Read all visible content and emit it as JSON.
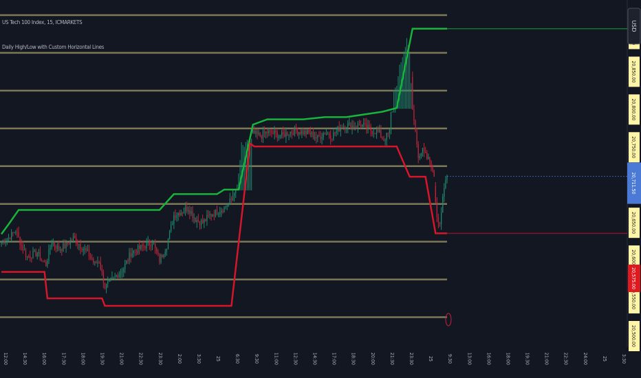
{
  "legend": {
    "symbol": "US Tech 100 Index, 15, ICMARKETS",
    "indicator": "Daily High/Low with Custom Horizontal Lines"
  },
  "price_scale": {
    "currency": "USD",
    "level_labels": [
      "20,900.00",
      "20,850.00",
      "20,800.00",
      "20,750.00",
      "20,700.00",
      "20,650.00",
      "20,600.00",
      "20,550.00",
      "20,500.00"
    ],
    "current_price": "20,711.50",
    "day_low_label": "20,575.00"
  },
  "time_axis": {
    "labels": [
      "12:00",
      "14:30",
      "16:00",
      "17:30",
      "18:00",
      "19:30",
      "21:00",
      "22:30",
      "23:30",
      "2:00",
      "3:30",
      "25",
      "6:30",
      "9:30",
      "11:00",
      "12:30",
      "14:30",
      "17:00",
      "18:30",
      "20:00",
      "21:30",
      "23:30",
      "25",
      "9:30",
      "13:00",
      "16:00",
      "18:00",
      "19:30",
      "21:00",
      "22:30",
      "24:00",
      "25",
      "3:30"
    ]
  },
  "colors": {
    "background": "#131722",
    "level_line": "#8f8a62",
    "day_high": "#18b43b",
    "day_low": "#d5162b",
    "candle_up": "#1d8a6e",
    "candle_down": "#c2253a",
    "current_price_line": "#3d5ea6",
    "current_price_label": "#4a7ad6",
    "low_label": "#e0191e",
    "level_label_bg": "#fff5a8"
  },
  "chart_data": {
    "type": "candlestick",
    "symbol": "US Tech 100 Index",
    "timeframe": "15",
    "ylim": [
      20490,
      20945
    ],
    "horizontal_levels": [
      20925,
      20875,
      20825,
      20775,
      20725,
      20675,
      20625,
      20575,
      20525
    ],
    "current_price": 20711.5,
    "day_high_steps": [
      [
        0,
        20635
      ],
      [
        5,
        20648
      ],
      [
        12,
        20667
      ],
      [
        110,
        20667
      ],
      [
        120,
        20688
      ],
      [
        150,
        20688
      ],
      [
        155,
        20694
      ],
      [
        165,
        20694
      ],
      [
        175,
        20780
      ],
      [
        185,
        20787
      ],
      [
        210,
        20787
      ],
      [
        225,
        20790
      ],
      [
        240,
        20790
      ],
      [
        265,
        20797
      ],
      [
        275,
        20802
      ],
      [
        286,
        20907
      ],
      [
        310,
        20907
      ]
    ],
    "day_low_steps": [
      [
        0,
        20585
      ],
      [
        30,
        20585
      ],
      [
        32,
        20550
      ],
      [
        70,
        20550
      ],
      [
        72,
        20540
      ],
      [
        160,
        20540
      ],
      [
        173,
        20755
      ],
      [
        176,
        20751
      ],
      [
        275,
        20751
      ],
      [
        284,
        20711
      ],
      [
        295,
        20711
      ],
      [
        302,
        20636
      ],
      [
        310,
        20636
      ]
    ],
    "close_anchors": [
      [
        0,
        20625
      ],
      [
        5,
        20630
      ],
      [
        10,
        20640
      ],
      [
        14,
        20620
      ],
      [
        18,
        20605
      ],
      [
        25,
        20610
      ],
      [
        28,
        20600
      ],
      [
        31,
        20595
      ],
      [
        35,
        20625
      ],
      [
        40,
        20615
      ],
      [
        45,
        20620
      ],
      [
        50,
        20630
      ],
      [
        55,
        20620
      ],
      [
        60,
        20610
      ],
      [
        65,
        20595
      ],
      [
        68,
        20600
      ],
      [
        72,
        20565
      ],
      [
        75,
        20570
      ],
      [
        80,
        20580
      ],
      [
        85,
        20590
      ],
      [
        90,
        20610
      ],
      [
        95,
        20615
      ],
      [
        100,
        20620
      ],
      [
        105,
        20625
      ],
      [
        108,
        20610
      ],
      [
        110,
        20600
      ],
      [
        115,
        20620
      ],
      [
        120,
        20660
      ],
      [
        125,
        20665
      ],
      [
        130,
        20670
      ],
      [
        135,
        20655
      ],
      [
        140,
        20650
      ],
      [
        145,
        20660
      ],
      [
        150,
        20665
      ],
      [
        155,
        20670
      ],
      [
        160,
        20680
      ],
      [
        163,
        20700
      ],
      [
        166,
        20755
      ],
      [
        170,
        20760
      ],
      [
        175,
        20768
      ],
      [
        180,
        20765
      ],
      [
        185,
        20770
      ],
      [
        190,
        20768
      ],
      [
        195,
        20765
      ],
      [
        200,
        20770
      ],
      [
        205,
        20772
      ],
      [
        210,
        20770
      ],
      [
        215,
        20768
      ],
      [
        220,
        20762
      ],
      [
        225,
        20770
      ],
      [
        230,
        20765
      ],
      [
        235,
        20775
      ],
      [
        240,
        20780
      ],
      [
        245,
        20778
      ],
      [
        250,
        20780
      ],
      [
        255,
        20775
      ],
      [
        258,
        20772
      ],
      [
        262,
        20770
      ],
      [
        266,
        20760
      ],
      [
        270,
        20770
      ],
      [
        272,
        20830
      ],
      [
        276,
        20855
      ],
      [
        279,
        20880
      ],
      [
        282,
        20905
      ],
      [
        284,
        20880
      ],
      [
        286,
        20800
      ],
      [
        288,
        20770
      ],
      [
        290,
        20740
      ],
      [
        293,
        20745
      ],
      [
        296,
        20735
      ],
      [
        299,
        20730
      ],
      [
        301,
        20700
      ],
      [
        303,
        20660
      ],
      [
        305,
        20650
      ],
      [
        307,
        20680
      ],
      [
        309,
        20705
      ],
      [
        310,
        20711.5
      ]
    ]
  }
}
